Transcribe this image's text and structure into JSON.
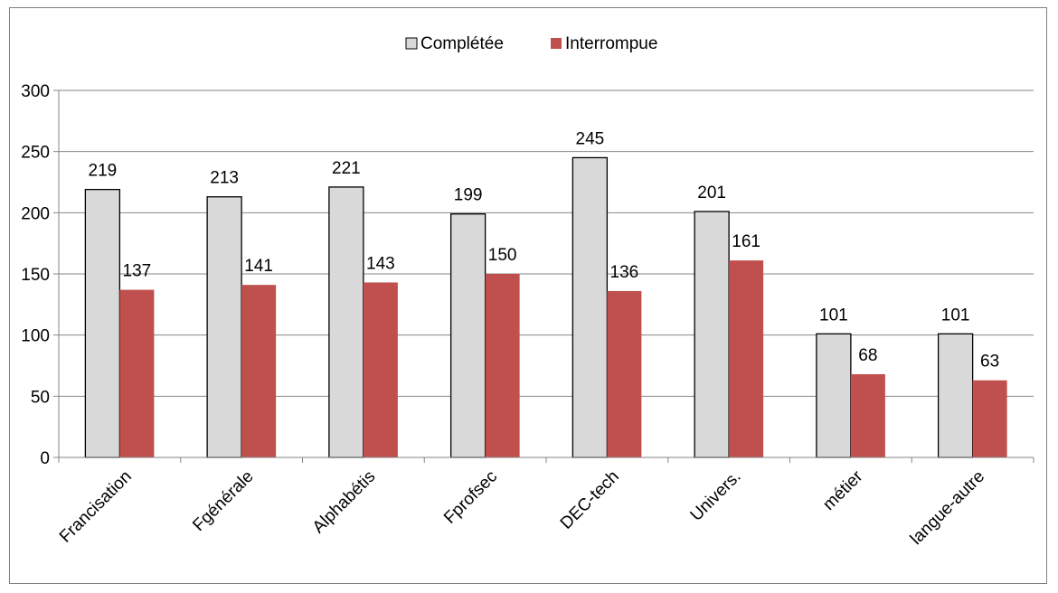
{
  "chart_data": {
    "type": "bar",
    "categories": [
      "Francisation",
      "Fgénérale",
      "Alphabétis",
      "Fprofsec",
      "DEC-tech",
      "Univers.",
      "métier",
      "langue-autre"
    ],
    "series": [
      {
        "name": "Complétée",
        "values": [
          219,
          213,
          221,
          199,
          245,
          201,
          101,
          101
        ],
        "color": "#d9d9d9"
      },
      {
        "name": "Interrompue",
        "values": [
          137,
          141,
          143,
          150,
          136,
          161,
          68,
          63
        ],
        "color": "#c0504d"
      }
    ],
    "ylim": [
      0,
      300
    ],
    "yticks": [
      "0",
      "50",
      "100",
      "150",
      "200",
      "250",
      "300"
    ],
    "grid": true,
    "legend_position": "top-center",
    "data_labels": true
  }
}
